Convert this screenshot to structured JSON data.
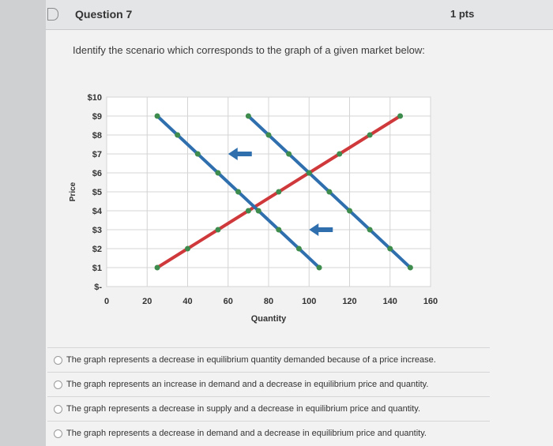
{
  "question": {
    "title": "Question 7",
    "points": "1 pts",
    "prompt": "Identify the scenario which corresponds to the graph of a given market below:"
  },
  "chart_data": {
    "type": "line",
    "xlabel": "Quantity",
    "ylabel": "Price",
    "x_ticks": [
      "0",
      "20",
      "40",
      "60",
      "80",
      "100",
      "120",
      "140",
      "160"
    ],
    "y_ticks": [
      "$-",
      "$1",
      "$2",
      "$3",
      "$4",
      "$5",
      "$6",
      "$7",
      "$8",
      "$9",
      "$10"
    ],
    "xlim": [
      0,
      160
    ],
    "ylim": [
      0,
      10
    ],
    "grid": true,
    "series": [
      {
        "color": "#d0393b",
        "points": [
          [
            25,
            1
          ],
          [
            40,
            2
          ],
          [
            55,
            3
          ],
          [
            70,
            4
          ],
          [
            85,
            5
          ],
          [
            100,
            6
          ],
          [
            115,
            7
          ],
          [
            130,
            8
          ],
          [
            145,
            9
          ]
        ]
      },
      {
        "color": "#2f6fae",
        "points": [
          [
            25,
            9
          ],
          [
            35,
            8
          ],
          [
            45,
            7
          ],
          [
            55,
            6
          ],
          [
            65,
            5
          ],
          [
            75,
            4
          ],
          [
            85,
            3
          ],
          [
            95,
            2
          ],
          [
            105,
            1
          ]
        ]
      },
      {
        "color": "#2f6fae",
        "points": [
          [
            70,
            9
          ],
          [
            80,
            8
          ],
          [
            90,
            7
          ],
          [
            100,
            6
          ],
          [
            110,
            5
          ],
          [
            120,
            4
          ],
          [
            130,
            3
          ],
          [
            140,
            2
          ],
          [
            150,
            1
          ]
        ]
      }
    ],
    "marker_color": "#3d8c4d",
    "annotations": [
      "left arrow near demand shift (upper)",
      "left arrow near demand shift (lower)"
    ]
  },
  "answers": [
    "The graph represents a decrease in equilibrium quantity demanded because of a price increase.",
    "The graph represents an increase in demand and a decrease in equilibrium price and quantity.",
    "The graph represents a decrease in supply and a decrease in equilibrium price and quantity.",
    "The graph represents a decrease in demand and a decrease in equilibrium price and quantity."
  ]
}
